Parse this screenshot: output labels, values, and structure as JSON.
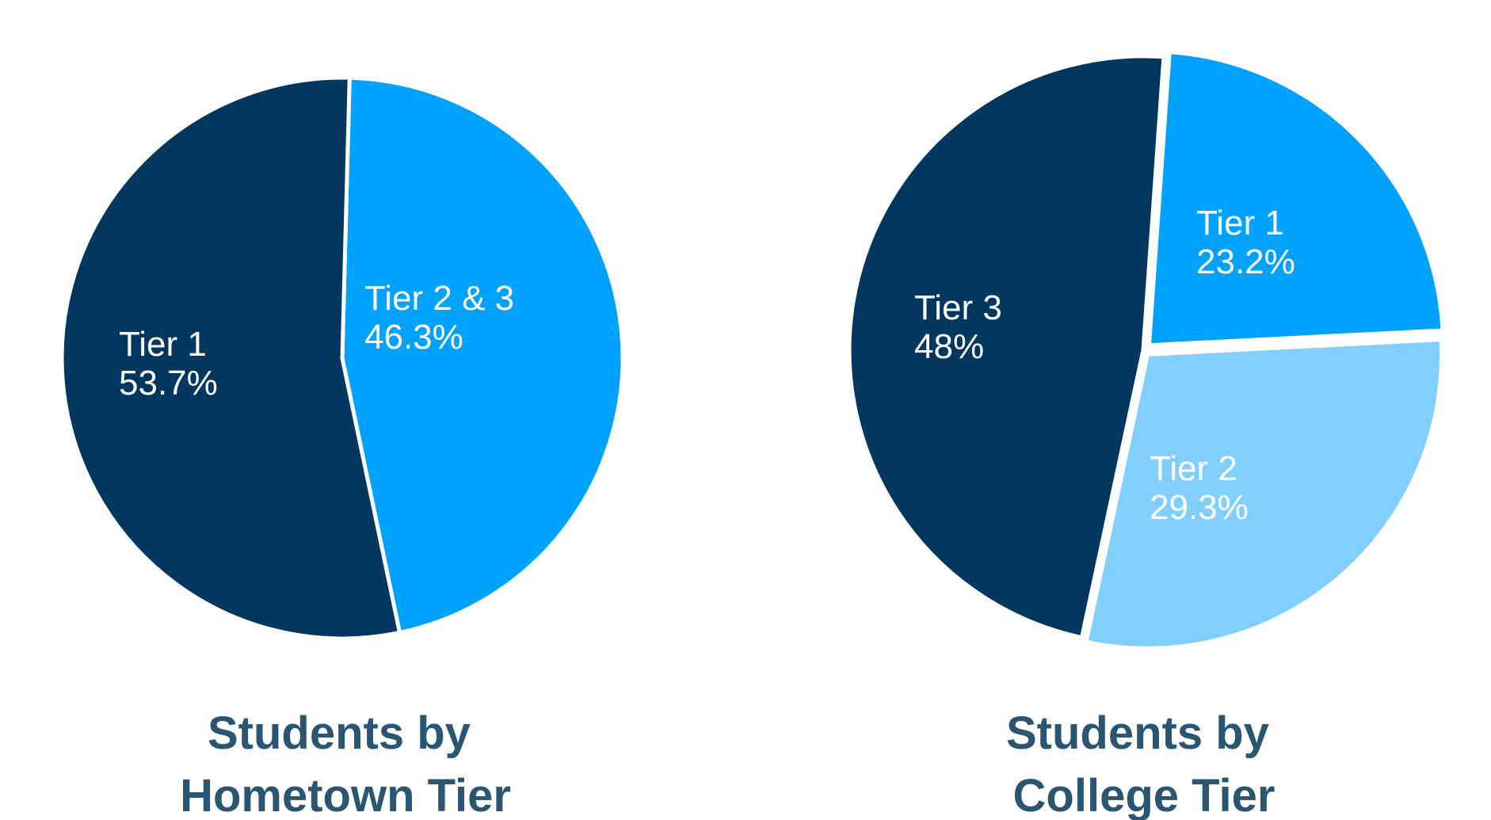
{
  "chart_data": [
    {
      "type": "pie",
      "title_lines": [
        "Students by",
        "Hometown Tier"
      ],
      "slices": [
        {
          "label": "Tier 2 & 3",
          "value_text": "46.3%",
          "value": 46.3,
          "color": "#00a2ff"
        },
        {
          "label": "Tier 1",
          "value_text": "53.7%",
          "value": 53.7,
          "color": "#02375f"
        }
      ]
    },
    {
      "type": "pie",
      "title_lines": [
        "Students by",
        "College Tier"
      ],
      "slices": [
        {
          "label": "Tier 1",
          "value_text": "23.2%",
          "value": 23.2,
          "color": "#00a2ff"
        },
        {
          "label": "Tier 2",
          "value_text": "29.3%",
          "value": 29.3,
          "color": "#80cfff"
        },
        {
          "label": "Tier 3",
          "value_text": "48%",
          "value": 48,
          "color": "#02375f"
        }
      ]
    }
  ]
}
